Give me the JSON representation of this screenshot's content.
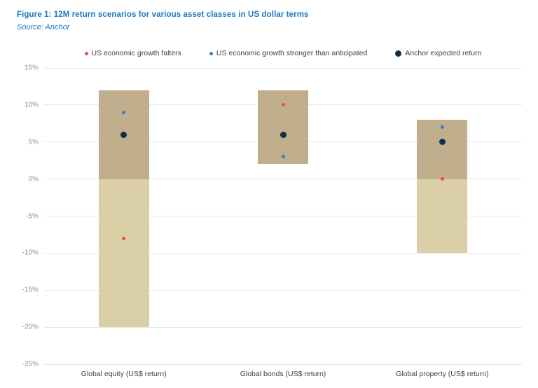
{
  "header": {
    "title": "Figure 1: 12M return scenarios for various asset classes in US dollar terms",
    "source": "Source: Anchor"
  },
  "legend": {
    "items": [
      {
        "label": "US economic growth falters",
        "color": "#e8523e",
        "size": 5
      },
      {
        "label": "US economic growth stronger than anticipated",
        "color": "#2d83c5",
        "size": 5
      },
      {
        "label": "Anchor expected return",
        "color": "#132f4e",
        "size": 9
      }
    ]
  },
  "colors": {
    "title_blue": "#1b78be",
    "bar_above_zero": "#c0ae8c",
    "bar_below_zero": "#dbcfa8",
    "gridline": "#e7e7e7",
    "ytick_text": "#8c8c8c",
    "xlabel_text": "#404040"
  },
  "chart_data": {
    "type": "bar",
    "title": "Figure 1: 12M return scenarios for various asset classes in US dollar terms",
    "subtitle": "Source: Anchor",
    "categories": [
      "Global equity (US$ return)",
      "Global bonds (US$ return)",
      "Global property (US$ return)"
    ],
    "bar_ranges_pct": [
      {
        "low": -20,
        "high": 12
      },
      {
        "low": 2,
        "high": 12
      },
      {
        "low": -10,
        "high": 8
      }
    ],
    "series": [
      {
        "name": "US economic growth falters",
        "values": [
          -8,
          10,
          0
        ]
      },
      {
        "name": "US economic growth stronger than anticipated",
        "values": [
          9,
          3,
          7
        ]
      },
      {
        "name": "Anchor expected return",
        "values": [
          6,
          6,
          5
        ]
      }
    ],
    "ylim": [
      -25,
      15
    ],
    "yticks": [
      15,
      10,
      5,
      0,
      -5,
      -10,
      -15,
      -20,
      -25
    ],
    "ytick_labels": [
      "15%",
      "10%",
      "5%",
      "0%",
      "-5%",
      "-10%",
      "-15%",
      "-20%",
      "-25%"
    ],
    "xlabel": "",
    "ylabel": "",
    "grid": "horizontal",
    "legend_position": "top"
  }
}
